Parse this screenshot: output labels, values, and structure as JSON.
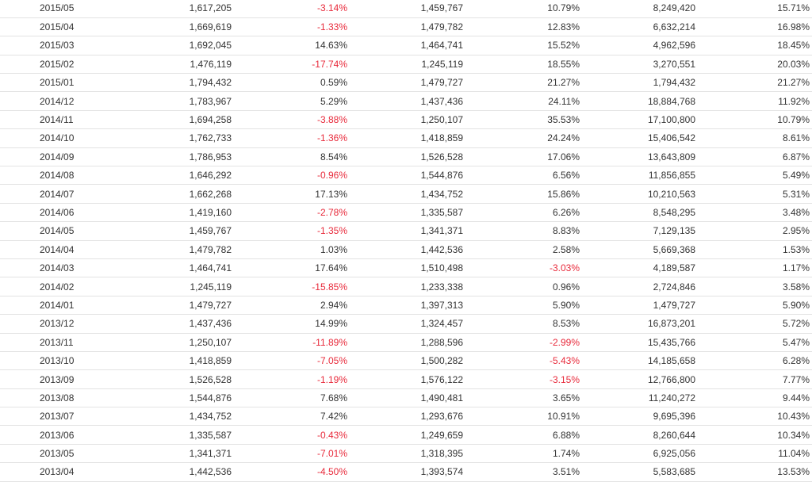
{
  "colors": {
    "negative": "#e8293a",
    "text": "#333333",
    "row_border": "#e3e3e3"
  },
  "rows": [
    [
      "2015/05",
      "1,617,205",
      "-3.14%",
      "1,459,767",
      "10.79%",
      "8,249,420",
      "15.71%"
    ],
    [
      "2015/04",
      "1,669,619",
      "-1.33%",
      "1,479,782",
      "12.83%",
      "6,632,214",
      "16.98%"
    ],
    [
      "2015/03",
      "1,692,045",
      "14.63%",
      "1,464,741",
      "15.52%",
      "4,962,596",
      "18.45%"
    ],
    [
      "2015/02",
      "1,476,119",
      "-17.74%",
      "1,245,119",
      "18.55%",
      "3,270,551",
      "20.03%"
    ],
    [
      "2015/01",
      "1,794,432",
      "0.59%",
      "1,479,727",
      "21.27%",
      "1,794,432",
      "21.27%"
    ],
    [
      "2014/12",
      "1,783,967",
      "5.29%",
      "1,437,436",
      "24.11%",
      "18,884,768",
      "11.92%"
    ],
    [
      "2014/11",
      "1,694,258",
      "-3.88%",
      "1,250,107",
      "35.53%",
      "17,100,800",
      "10.79%"
    ],
    [
      "2014/10",
      "1,762,733",
      "-1.36%",
      "1,418,859",
      "24.24%",
      "15,406,542",
      "8.61%"
    ],
    [
      "2014/09",
      "1,786,953",
      "8.54%",
      "1,526,528",
      "17.06%",
      "13,643,809",
      "6.87%"
    ],
    [
      "2014/08",
      "1,646,292",
      "-0.96%",
      "1,544,876",
      "6.56%",
      "11,856,855",
      "5.49%"
    ],
    [
      "2014/07",
      "1,662,268",
      "17.13%",
      "1,434,752",
      "15.86%",
      "10,210,563",
      "5.31%"
    ],
    [
      "2014/06",
      "1,419,160",
      "-2.78%",
      "1,335,587",
      "6.26%",
      "8,548,295",
      "3.48%"
    ],
    [
      "2014/05",
      "1,459,767",
      "-1.35%",
      "1,341,371",
      "8.83%",
      "7,129,135",
      "2.95%"
    ],
    [
      "2014/04",
      "1,479,782",
      "1.03%",
      "1,442,536",
      "2.58%",
      "5,669,368",
      "1.53%"
    ],
    [
      "2014/03",
      "1,464,741",
      "17.64%",
      "1,510,498",
      "-3.03%",
      "4,189,587",
      "1.17%"
    ],
    [
      "2014/02",
      "1,245,119",
      "-15.85%",
      "1,233,338",
      "0.96%",
      "2,724,846",
      "3.58%"
    ],
    [
      "2014/01",
      "1,479,727",
      "2.94%",
      "1,397,313",
      "5.90%",
      "1,479,727",
      "5.90%"
    ],
    [
      "2013/12",
      "1,437,436",
      "14.99%",
      "1,324,457",
      "8.53%",
      "16,873,201",
      "5.72%"
    ],
    [
      "2013/11",
      "1,250,107",
      "-11.89%",
      "1,288,596",
      "-2.99%",
      "15,435,766",
      "5.47%"
    ],
    [
      "2013/10",
      "1,418,859",
      "-7.05%",
      "1,500,282",
      "-5.43%",
      "14,185,658",
      "6.28%"
    ],
    [
      "2013/09",
      "1,526,528",
      "-1.19%",
      "1,576,122",
      "-3.15%",
      "12,766,800",
      "7.77%"
    ],
    [
      "2013/08",
      "1,544,876",
      "7.68%",
      "1,490,481",
      "3.65%",
      "11,240,272",
      "9.44%"
    ],
    [
      "2013/07",
      "1,434,752",
      "7.42%",
      "1,293,676",
      "10.91%",
      "9,695,396",
      "10.43%"
    ],
    [
      "2013/06",
      "1,335,587",
      "-0.43%",
      "1,249,659",
      "6.88%",
      "8,260,644",
      "10.34%"
    ],
    [
      "2013/05",
      "1,341,371",
      "-7.01%",
      "1,318,395",
      "1.74%",
      "6,925,056",
      "11.04%"
    ],
    [
      "2013/04",
      "1,442,536",
      "-4.50%",
      "1,393,574",
      "3.51%",
      "5,583,685",
      "13.53%"
    ]
  ]
}
